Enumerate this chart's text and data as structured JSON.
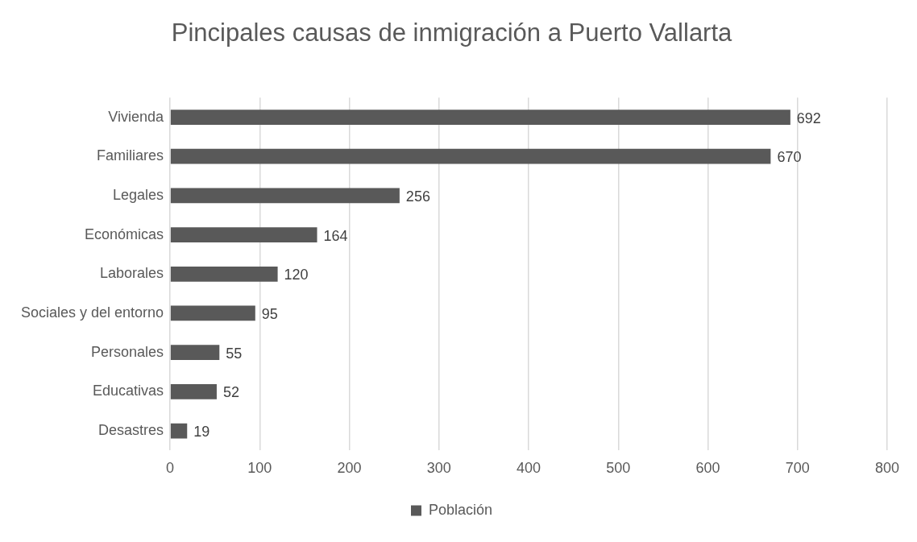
{
  "chart_data": {
    "type": "bar",
    "orientation": "horizontal",
    "title": "Pincipales causas de inmigración a Puerto Vallarta",
    "categories": [
      "Vivienda",
      "Familiares",
      "Legales",
      "Económicas",
      "Laborales",
      "Sociales y del entorno",
      "Personales",
      "Educativas",
      "Desastres"
    ],
    "series": [
      {
        "name": "Población",
        "color": "#595959",
        "values": [
          692,
          670,
          256,
          164,
          120,
          95,
          55,
          52,
          19
        ]
      }
    ],
    "xlim": [
      0,
      800
    ],
    "xticks": [
      0,
      100,
      200,
      300,
      400,
      500,
      600,
      700,
      800
    ],
    "grid": "x",
    "legend": "bottom",
    "data_labels": true
  }
}
